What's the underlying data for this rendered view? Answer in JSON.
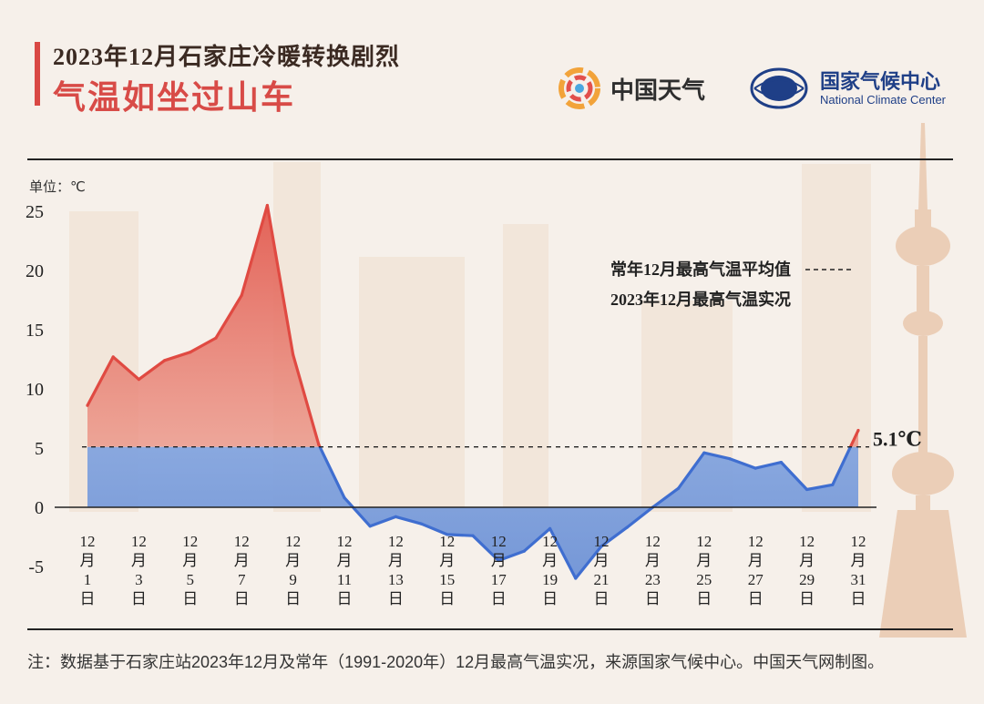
{
  "header": {
    "title_line1": "2023年12月石家庄冷暖转换剧烈",
    "title_line2": "气温如坐过山车",
    "logo_weather": "中国天气",
    "logo_ncc_cn": "国家气候中心",
    "logo_ncc_en": "National Climate Center"
  },
  "colors": {
    "warm": "#e04a42",
    "cool": "#3f6ed0",
    "title_red": "#d84b47",
    "ncc_blue": "#1f3f87"
  },
  "chart_data": {
    "type": "area",
    "unit_label": "单位：℃",
    "ylim": [
      -6,
      27
    ],
    "yticks": [
      25,
      20,
      15,
      10,
      5,
      0,
      -5
    ],
    "x": [
      1,
      2,
      3,
      4,
      5,
      6,
      7,
      8,
      9,
      10,
      11,
      12,
      13,
      14,
      15,
      16,
      17,
      18,
      19,
      20,
      21,
      22,
      23,
      24,
      25,
      26,
      27,
      28,
      29,
      30,
      31
    ],
    "x_tick_days": [
      1,
      3,
      5,
      7,
      9,
      11,
      13,
      15,
      17,
      19,
      21,
      23,
      25,
      27,
      29,
      31
    ],
    "x_tick_month": "12",
    "x_tick_month_char": "月",
    "x_tick_day_char": "日",
    "series": [
      {
        "name": "2023年12月最高气温实况",
        "values": [
          8.6,
          12.7,
          10.8,
          12.4,
          13.1,
          14.3,
          17.9,
          25.5,
          12.9,
          5.3,
          0.8,
          -1.6,
          -0.8,
          -1.4,
          -2.3,
          -2.4,
          -4.5,
          -3.7,
          -1.8,
          -6.0,
          -3.3,
          -1.7,
          0.0,
          1.6,
          4.6,
          4.1,
          3.3,
          3.8,
          1.5,
          1.9,
          6.5
        ]
      },
      {
        "name": "常年12月最高气温平均值",
        "value": 5.1
      }
    ],
    "annotation": "5.1℃",
    "legend_position": "top-right"
  },
  "footer": {
    "note": "注：数据基于石家庄站2023年12月及常年（1991-2020年）12月最高气温实况，来源国家气候中心。中国天气网制图。"
  }
}
